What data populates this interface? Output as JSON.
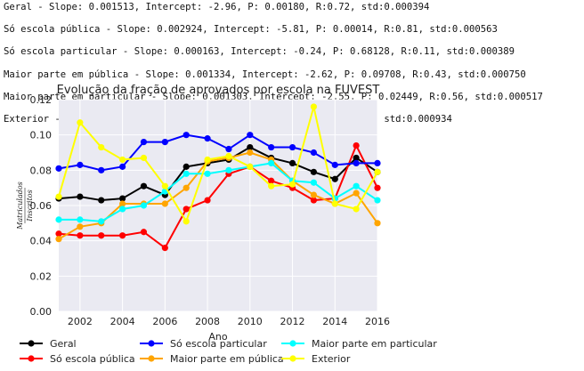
{
  "stats_lines": [
    "Geral - Slope: 0.001513, Intercept: -2.96, P: 0.00180, R:0.72, std:0.000394",
    "Só escola pública - Slope: 0.002924, Intercept: -5.81, P: 0.00014, R:0.81, std:0.000563",
    "Só escola particular - Slope: 0.000163, Intercept: -0.24, P: 0.68128, R:0.11, std:0.000389",
    "Maior parte em pública - Slope: 0.001334, Intercept: -2.62, P: 0.09708, R:0.43, std:0.000750",
    "Maior parte em particular - Slope: 0.001303, Intercept: -2.55, P: 0.02449, R:0.56, std:0.000517",
    "Exterior - Slope: -0.000611, Intercept: 1.31, P: 0.52355, R:-0.17, std:0.000934"
  ],
  "chart_data": {
    "type": "line",
    "title": "Evolução da fração de aprovados por escola na FUVEST",
    "xlabel": "Ano",
    "ylabel_num": "Matriculados",
    "ylabel_den": "Inscritos",
    "xlim": [
      2001,
      2016
    ],
    "ylim": [
      0.0,
      0.12
    ],
    "xticks": [
      2002,
      2004,
      2006,
      2008,
      2010,
      2012,
      2014,
      2016
    ],
    "yticks": [
      "0.00",
      "0.02",
      "0.04",
      "0.06",
      "0.08",
      "0.10",
      "0.12"
    ],
    "grid": true,
    "legend_placement": "below",
    "x": [
      2001,
      2002,
      2003,
      2004,
      2005,
      2006,
      2007,
      2008,
      2009,
      2010,
      2011,
      2012,
      2013,
      2014,
      2015,
      2016
    ],
    "series": [
      {
        "name": "Geral",
        "color": "#000000",
        "values": [
          0.064,
          0.065,
          0.063,
          0.064,
          0.071,
          0.066,
          0.082,
          0.084,
          0.086,
          0.093,
          0.087,
          0.084,
          0.079,
          0.075,
          0.087,
          0.079
        ]
      },
      {
        "name": "Só escola pública",
        "color": "#ff0000",
        "values": [
          0.044,
          0.043,
          0.043,
          0.043,
          0.045,
          0.036,
          0.058,
          0.063,
          0.078,
          0.082,
          0.074,
          0.07,
          0.063,
          0.064,
          0.094,
          0.07
        ]
      },
      {
        "name": "Só escola particular",
        "color": "#0000ff",
        "values": [
          0.081,
          0.083,
          0.08,
          0.082,
          0.096,
          0.096,
          0.1,
          0.098,
          0.092,
          0.1,
          0.093,
          0.093,
          0.09,
          0.083,
          0.084,
          0.084
        ]
      },
      {
        "name": "Maior parte em pública",
        "color": "#ffa500",
        "values": [
          0.041,
          0.048,
          0.05,
          0.061,
          0.061,
          0.061,
          0.07,
          0.085,
          0.087,
          0.09,
          0.086,
          0.074,
          0.066,
          0.061,
          0.067,
          0.05
        ]
      },
      {
        "name": "Maior parte em particular",
        "color": "#00ffff",
        "values": [
          0.052,
          0.052,
          0.051,
          0.058,
          0.06,
          0.068,
          0.078,
          0.078,
          0.08,
          0.082,
          0.084,
          0.074,
          0.073,
          0.064,
          0.071,
          0.063
        ]
      },
      {
        "name": "Exterior",
        "color": "#ffff00",
        "values": [
          0.065,
          0.107,
          0.093,
          0.086,
          0.087,
          0.071,
          0.051,
          0.086,
          0.088,
          0.082,
          0.071,
          0.072,
          0.116,
          0.061,
          0.058,
          0.079
        ]
      }
    ]
  }
}
